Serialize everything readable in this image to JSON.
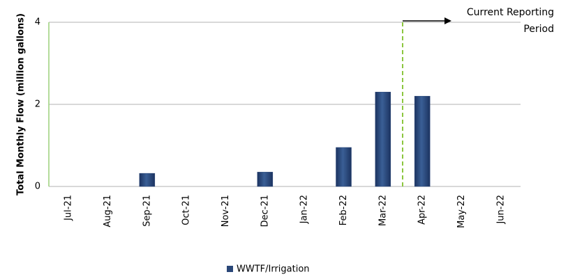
{
  "chart_data": {
    "type": "bar",
    "y_label": "Total Monthly Flow (million gallons)",
    "categories": [
      "Jul-21",
      "Aug-21",
      "Sep-21",
      "Oct-21",
      "Nov-21",
      "Dec-21",
      "Jan-22",
      "Feb-22",
      "Mar-22",
      "Apr-22",
      "May-22",
      "Jun-22"
    ],
    "series": [
      {
        "name": "WWTF/Irrigation",
        "color": "#2a4778",
        "values": [
          0,
          0,
          0.32,
          0,
          0,
          0.35,
          0,
          0.95,
          2.3,
          2.2,
          0,
          0
        ]
      }
    ],
    "ylim": [
      0,
      4
    ],
    "yticks": [
      0,
      2,
      4
    ],
    "grid": true,
    "annotation": {
      "text": "Current Reporting Period",
      "period_start": "Apr-22"
    },
    "legend": "bottom"
  }
}
